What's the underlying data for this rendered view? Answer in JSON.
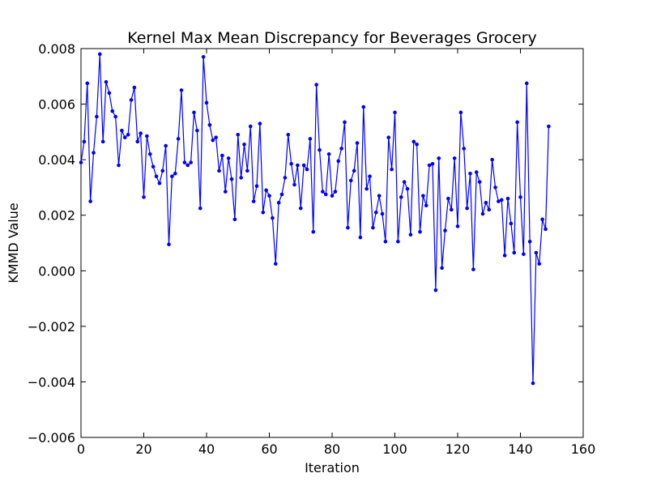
{
  "chart_data": {
    "type": "line",
    "title": "Kernel Max Mean Discrepancy for Beverages Grocery",
    "xlabel": "Iteration",
    "ylabel": "KMMD Value",
    "xlim": [
      0,
      160
    ],
    "ylim": [
      -0.006,
      0.008
    ],
    "xticks": [
      0,
      20,
      40,
      60,
      80,
      100,
      120,
      140,
      160
    ],
    "xtick_labels": [
      "0",
      "20",
      "40",
      "60",
      "80",
      "100",
      "120",
      "140",
      "160"
    ],
    "yticks": [
      -0.006,
      -0.004,
      -0.002,
      0.0,
      0.002,
      0.004,
      0.006,
      0.008
    ],
    "ytick_labels": [
      "−0.006",
      "−0.004",
      "−0.002",
      "0.000",
      "0.002",
      "0.004",
      "0.006",
      "0.008"
    ],
    "grid": false,
    "line_color": "#0000ff",
    "series": [
      {
        "x": [
          0,
          1,
          2,
          3,
          4,
          5,
          6,
          7,
          8,
          9,
          10,
          11,
          12,
          13,
          14,
          15,
          16,
          17,
          18,
          19,
          20,
          21,
          22,
          23,
          24,
          25,
          26,
          27,
          28,
          29,
          30,
          31,
          32,
          33,
          34,
          35,
          36,
          37,
          38,
          39,
          40,
          41,
          42,
          43,
          44,
          45,
          46,
          47,
          48,
          49,
          50,
          51,
          52,
          53,
          54,
          55,
          56,
          57,
          58,
          59,
          60,
          61,
          62,
          63,
          64,
          65,
          66,
          67,
          68,
          69,
          70,
          71,
          72,
          73,
          74,
          75,
          76,
          77,
          78,
          79,
          80,
          81,
          82,
          83,
          84,
          85,
          86,
          87,
          88,
          89,
          90,
          91,
          92,
          93,
          94,
          95,
          96,
          97,
          98,
          99,
          100,
          101,
          102,
          103,
          104,
          105,
          106,
          107,
          108,
          109,
          110,
          111,
          112,
          113,
          114,
          115,
          116,
          117,
          118,
          119,
          120,
          121,
          122,
          123,
          124,
          125,
          126,
          127,
          128,
          129,
          130,
          131,
          132,
          133,
          134,
          135,
          136,
          137,
          138,
          139,
          140,
          141,
          142,
          143,
          144,
          145,
          146,
          147,
          148,
          149
        ],
        "values": [
          0.0039,
          0.00465,
          0.00675,
          0.0025,
          0.00425,
          0.00555,
          0.0078,
          0.00465,
          0.0068,
          0.0064,
          0.00575,
          0.00555,
          0.0038,
          0.00505,
          0.0048,
          0.0049,
          0.00615,
          0.0066,
          0.00465,
          0.00495,
          0.00265,
          0.00485,
          0.0042,
          0.00375,
          0.0034,
          0.00315,
          0.0036,
          0.0045,
          0.00095,
          0.0034,
          0.0035,
          0.00475,
          0.0065,
          0.0039,
          0.0038,
          0.0039,
          0.0057,
          0.00505,
          0.00225,
          0.0077,
          0.00605,
          0.00525,
          0.0047,
          0.0048,
          0.0036,
          0.00415,
          0.00285,
          0.00405,
          0.0033,
          0.00185,
          0.0049,
          0.00335,
          0.00455,
          0.0036,
          0.0052,
          0.0025,
          0.00305,
          0.0053,
          0.0021,
          0.0029,
          0.0027,
          0.0019,
          0.00025,
          0.00245,
          0.00275,
          0.00335,
          0.0049,
          0.00385,
          0.0031,
          0.0038,
          0.00225,
          0.0038,
          0.00365,
          0.00475,
          0.0014,
          0.0067,
          0.00435,
          0.00285,
          0.00275,
          0.0042,
          0.0027,
          0.00285,
          0.00395,
          0.0044,
          0.00535,
          0.00155,
          0.00325,
          0.0036,
          0.0046,
          0.0012,
          0.0059,
          0.00295,
          0.0034,
          0.00155,
          0.0021,
          0.0027,
          0.00205,
          0.00105,
          0.0048,
          0.00365,
          0.0057,
          0.00105,
          0.00265,
          0.0032,
          0.00295,
          0.0013,
          0.00465,
          0.00455,
          0.0014,
          0.0027,
          0.00235,
          0.0038,
          0.00385,
          -0.0007,
          0.00405,
          0.0001,
          0.00145,
          0.0026,
          0.0022,
          0.00405,
          0.0016,
          0.0057,
          0.0044,
          0.00225,
          0.0035,
          5e-05,
          0.00355,
          0.0032,
          0.00205,
          0.00245,
          0.0022,
          0.004,
          0.003,
          0.0025,
          0.00255,
          0.00055,
          0.0026,
          0.0017,
          0.00065,
          0.00535,
          0.00265,
          0.0006,
          0.00675,
          0.00105,
          -0.00405,
          0.00065,
          0.00025,
          0.00185,
          0.0015,
          0.0052
        ]
      }
    ]
  }
}
